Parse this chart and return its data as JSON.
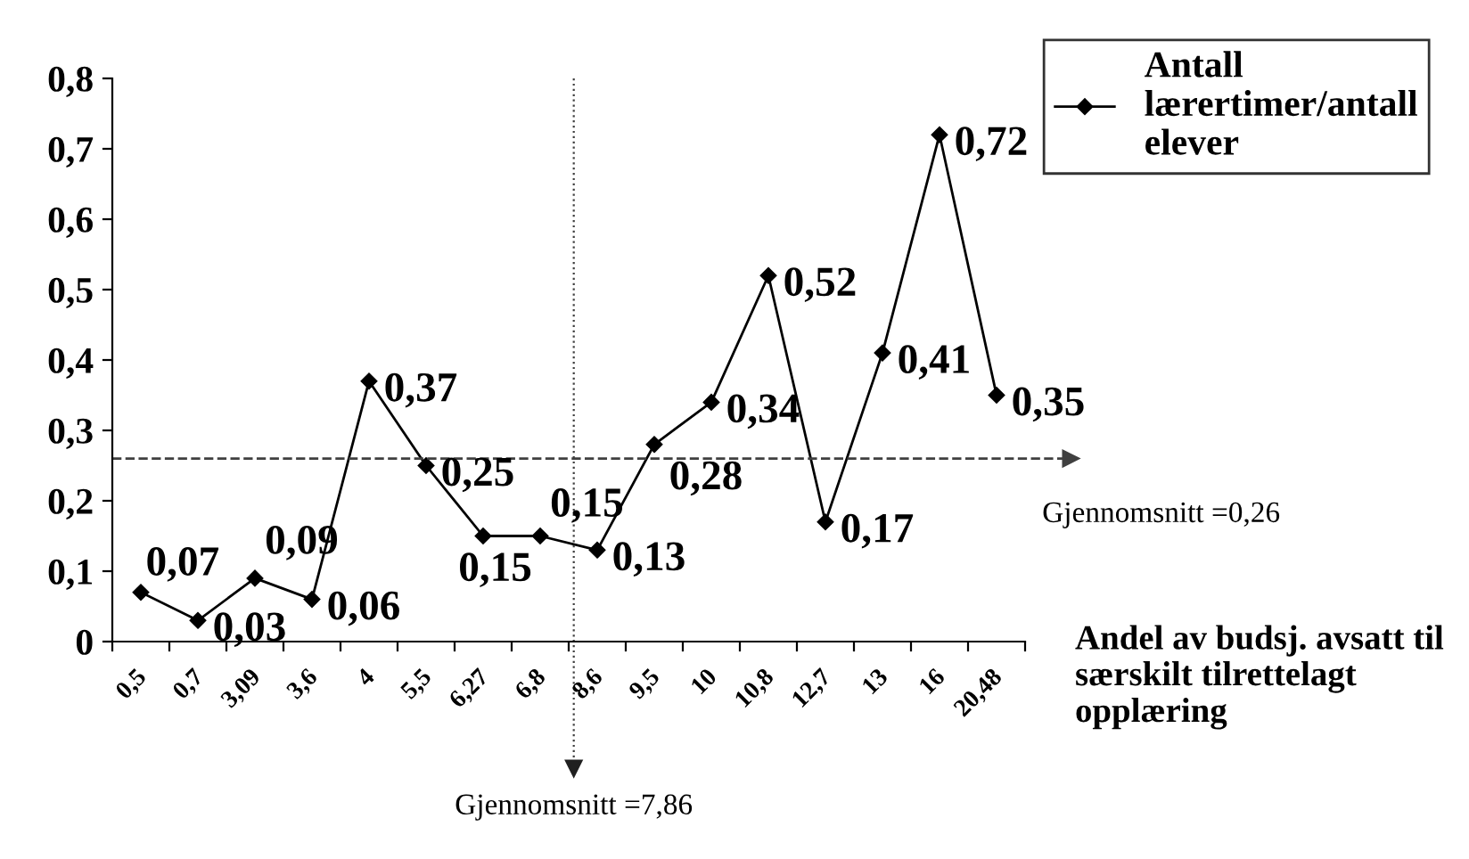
{
  "chart_data": {
    "type": "line",
    "categories": [
      "0,5",
      "0,7",
      "3,09",
      "3,6",
      "4",
      "5,5",
      "6,27",
      "6,8",
      "8,6",
      "9,5",
      "10",
      "10,8",
      "12,7",
      "13",
      "16",
      "20,48"
    ],
    "series": [
      {
        "name": "Antall lærertimer/antall elever",
        "color": "#000000",
        "values": [
          0.07,
          0.03,
          0.09,
          0.06,
          0.37,
          0.25,
          0.15,
          0.15,
          0.13,
          0.28,
          0.34,
          0.52,
          0.17,
          0.41,
          0.72,
          0.35
        ],
        "value_labels": [
          "0,07",
          "0,03",
          "0,09",
          "0,06",
          "0,37",
          "0,25",
          "0,15",
          "0,15",
          "0,13",
          "0,28",
          "0,34",
          "0,52",
          "0,17",
          "0,41",
          "0,72",
          "0,35"
        ]
      }
    ],
    "xlabel": "Andel av budsj. avsatt til særskilt tilrettelagt opplæring",
    "ylim": [
      0,
      0.8
    ],
    "yticks": [
      0,
      {
        "value": 0.1,
        "label": "0,1"
      },
      {
        "value": 0.2,
        "label": "0,2"
      },
      {
        "value": 0.3,
        "label": "0,3"
      },
      {
        "value": 0.4,
        "label": "0,4"
      },
      {
        "value": 0.5,
        "label": "0,5"
      },
      {
        "value": 0.6,
        "label": "0,6"
      },
      {
        "value": 0.7,
        "label": "0,7"
      },
      {
        "value": 0.8,
        "label": "0,8"
      }
    ],
    "ref_lines": [
      {
        "axis": "y",
        "value": 0.26,
        "label": "Gjennomsnitt =0,26",
        "line_style": "dashed",
        "color": "#404040"
      }
    ],
    "annotations": [
      "Gjennomsnitt =7,86"
    ],
    "marker": "diamond",
    "line_style": "solid",
    "grid": false,
    "legend": "top right"
  }
}
